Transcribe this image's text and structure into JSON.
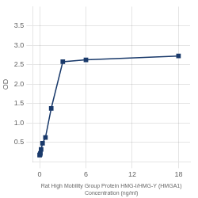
{
  "chart_data": {
    "type": "line",
    "x": [
      0,
      0.0469,
      0.0938,
      0.1875,
      0.375,
      0.75,
      1.5,
      3,
      6,
      18
    ],
    "series": [
      {
        "values": [
          0.175,
          0.19,
          0.22,
          0.32,
          0.48,
          0.63,
          1.38,
          2.58,
          2.63,
          2.73
        ],
        "color": "#1a3a6b",
        "marker": "square"
      }
    ],
    "xlabel": "Rat High Mobility Group Protein HMG-I/HMG-Y (HMGA1)\nConcentration (ng/ml)",
    "ylabel": "OD",
    "xlim": [
      -0.9,
      19.5
    ],
    "ylim": [
      0,
      4.0
    ],
    "xticks": [
      0,
      6,
      12,
      18
    ],
    "yticks": [
      0.5,
      {
        "value": 1.0,
        "label": "1.0"
      },
      1.5,
      {
        "value": 2.0,
        "label": "2.0"
      },
      2.5,
      {
        "value": 3.0,
        "label": "3.0"
      },
      3.5
    ],
    "grid": true
  }
}
